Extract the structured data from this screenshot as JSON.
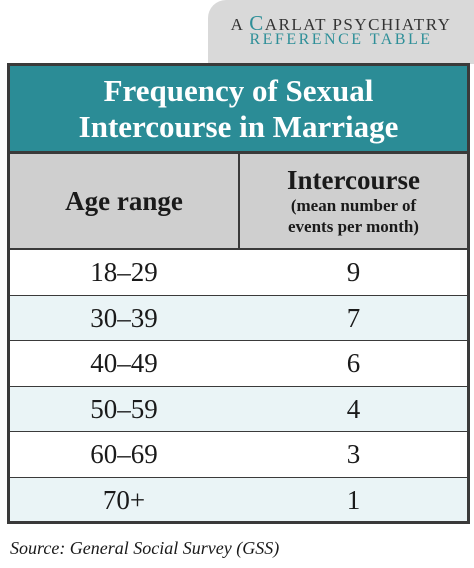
{
  "header_tab": {
    "line1_a": "A ",
    "line1_c": "C",
    "line1_rest": "ARLAT PSYCHIATRY",
    "line2": "REFERENCE TABLE"
  },
  "table": {
    "title_line1": "Frequency of Sexual",
    "title_line2": "Intercourse in Marriage",
    "col_age_header": "Age range",
    "col_intercourse_header": "Intercourse",
    "col_intercourse_sub1": "(mean number of",
    "col_intercourse_sub2": "events per month)",
    "rows": [
      {
        "age": "18–29",
        "value": "9"
      },
      {
        "age": "30–39",
        "value": "7"
      },
      {
        "age": "40–49",
        "value": "6"
      },
      {
        "age": "50–59",
        "value": "4"
      },
      {
        "age": "60–69",
        "value": "3"
      },
      {
        "age": "70+",
        "value": "1"
      }
    ]
  },
  "source": "Source: General Social Survey (GSS)",
  "colors": {
    "title_bar": "#2b8c96",
    "accent": "#2e8f98",
    "header_row": "#cfcfcf",
    "alt_row": "#eaf4f6",
    "tab_bg": "#d9d9d9"
  }
}
